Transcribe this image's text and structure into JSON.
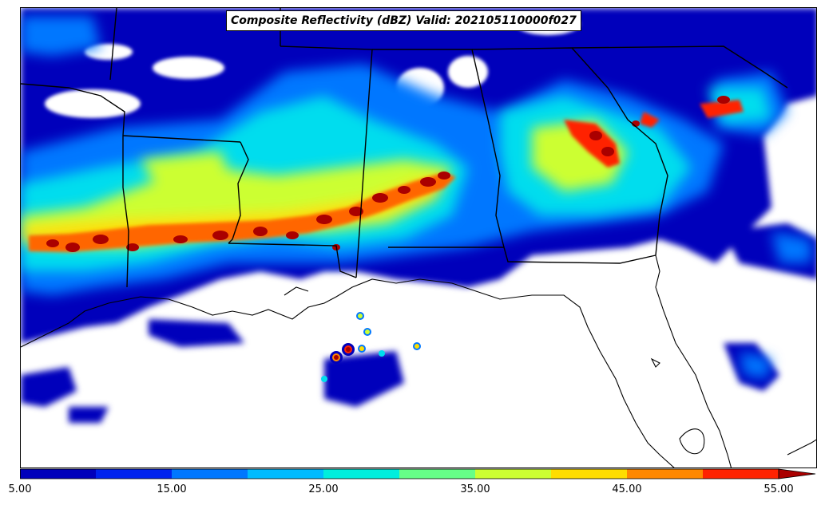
{
  "title": "Composite Reflectivity (dBZ) Valid: 202105110000f027",
  "colorbar": {
    "tick_labels": [
      "5.00",
      "15.00",
      "25.00",
      "35.00",
      "45.00",
      "55.00"
    ],
    "tick_values": [
      5,
      15,
      25,
      35,
      45,
      55
    ],
    "min": 5,
    "max": 55,
    "extend": "max",
    "bins": [
      {
        "from": 5,
        "to": 10,
        "color": "#0000bb"
      },
      {
        "from": 10,
        "to": 15,
        "color": "#0022ee"
      },
      {
        "from": 15,
        "to": 20,
        "color": "#0077ff"
      },
      {
        "from": 20,
        "to": 25,
        "color": "#00bbff"
      },
      {
        "from": 25,
        "to": 30,
        "color": "#00eedd"
      },
      {
        "from": 30,
        "to": 35,
        "color": "#66ff88"
      },
      {
        "from": 35,
        "to": 40,
        "color": "#ccff33"
      },
      {
        "from": 40,
        "to": 45,
        "color": "#ffdd00"
      },
      {
        "from": 45,
        "to": 50,
        "color": "#ff8800"
      },
      {
        "from": 50,
        "to": 55,
        "color": "#ff2200"
      }
    ],
    "overflow_color": "#aa0000"
  },
  "map": {
    "region": "Southeastern United States and northern Gulf of Mexico",
    "features": [
      "state-boundaries",
      "coastline",
      "reflectivity-contours"
    ]
  }
}
